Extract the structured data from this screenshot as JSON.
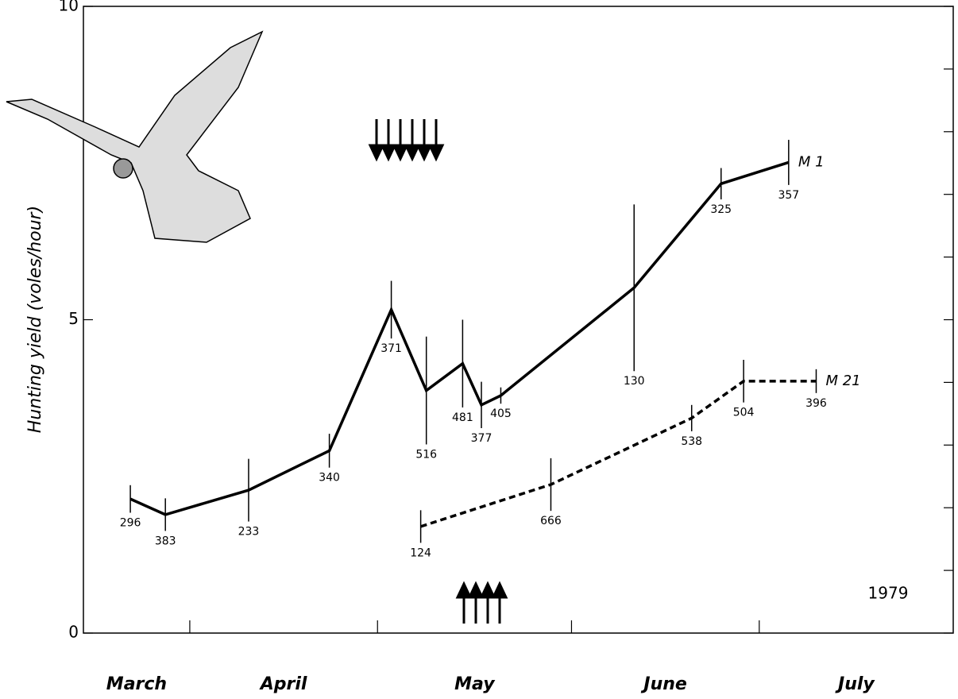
{
  "chart_data": {
    "type": "line",
    "y_label": "Hunting yield (voles/hour)",
    "annotation": "1979",
    "categories": [
      "March",
      "April",
      "May",
      "June",
      "July"
    ],
    "xlim": [
      14,
      153
    ],
    "xticks": [
      31,
      61,
      92,
      122
    ],
    "ylim": [
      0,
      10
    ],
    "yticks": [
      0,
      5,
      10
    ],
    "yminorticks": [
      1,
      2,
      3,
      4,
      6,
      7,
      8,
      9
    ],
    "series": [
      {
        "name": "M 1",
        "color": "#000000",
        "dashed": false,
        "x": [
          21.5,
          27.1,
          40.4,
          53.3,
          63.2,
          68.8,
          74.6,
          77.6,
          80.7,
          102,
          115.9,
          126.7
        ],
        "values": [
          2.14,
          1.89,
          2.28,
          2.91,
          5.16,
          3.87,
          4.3,
          3.64,
          3.79,
          5.51,
          7.17,
          7.51
        ],
        "errors": [
          0.22,
          0.26,
          0.5,
          0.27,
          0.46,
          0.86,
          0.7,
          0.37,
          0.13,
          1.33,
          0.25,
          0.36
        ],
        "sample_sizes": [
          296,
          383,
          233,
          340,
          371,
          516,
          481,
          377,
          405,
          130,
          325,
          357
        ]
      },
      {
        "name": "M 21",
        "color": "#000000",
        "dashed": true,
        "x": [
          67.9,
          88.7,
          111.2,
          119.5,
          131.1
        ],
        "values": [
          1.7,
          2.37,
          3.43,
          4.02,
          4.02
        ],
        "errors": [
          0.26,
          0.42,
          0.21,
          0.34,
          0.19
        ],
        "sample_sizes": [
          124,
          666,
          538,
          504,
          396
        ]
      }
    ]
  }
}
